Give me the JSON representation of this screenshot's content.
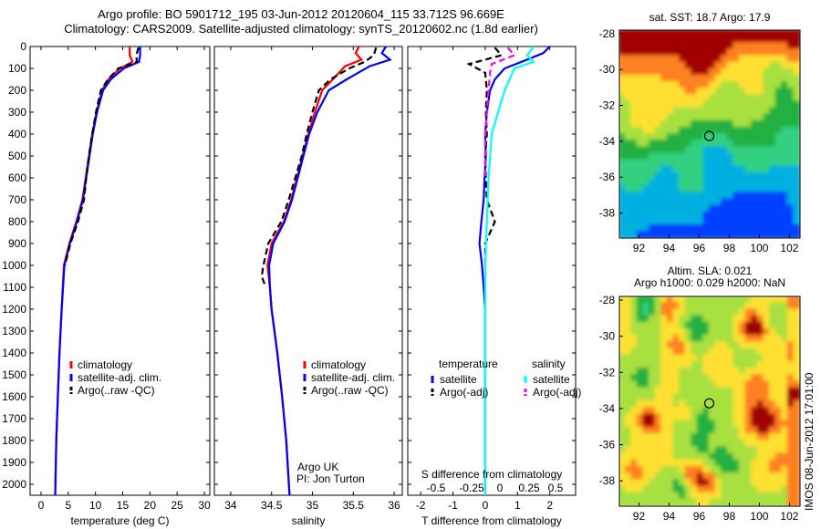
{
  "title": {
    "line1": "Argo profile: BO 5901712_195 03-Jun-2012 20120604_115 33.712S 96.669E",
    "line2": "Climatology: CARS2009. Satellite-adjusted climatology: synTS_20120602.nc (1.8d earlier)"
  },
  "colors": {
    "climatology": "#ff0000",
    "satellite": "#0000ff",
    "argo": "#000000",
    "s_satellite": "#00ffff",
    "s_argo": "#ff00ff"
  },
  "chart_data": [
    {
      "type": "line",
      "xlabel": "temperature (deg C)",
      "xticks": [
        0,
        5,
        10,
        15,
        20,
        25,
        30
      ],
      "xlim": [
        -2,
        31
      ],
      "ylim": [
        0,
        2050
      ],
      "yticks": [
        0,
        100,
        200,
        300,
        400,
        500,
        600,
        700,
        800,
        900,
        1000,
        1100,
        1200,
        1300,
        1400,
        1500,
        1600,
        1700,
        1800,
        1900,
        2000
      ],
      "legend": [
        "climatology",
        "satellite-adj. clim.",
        "Argo(..raw -QC)"
      ],
      "series": [
        {
          "name": "climatology",
          "color": "#ff0000",
          "depth": [
            0,
            40,
            70,
            100,
            150,
            200,
            300,
            400,
            500,
            600,
            700,
            800,
            900,
            1000,
            1200,
            1400,
            1600,
            1800,
            2050
          ],
          "values": [
            16.3,
            16.3,
            16.8,
            14.5,
            12.4,
            11.2,
            10.2,
            9.4,
            8.8,
            8.2,
            7.6,
            6.5,
            5.2,
            4.2,
            3.8,
            3.4,
            3.1,
            2.8,
            2.6
          ]
        },
        {
          "name": "satellite-adj. clim.",
          "color": "#0000ff",
          "depth": [
            0,
            40,
            70,
            100,
            150,
            200,
            300,
            400,
            500,
            600,
            700,
            800,
            900,
            1000,
            1200,
            1400,
            1600,
            1800,
            2050
          ],
          "values": [
            18.2,
            18.2,
            18.0,
            15.2,
            12.8,
            11.4,
            10.3,
            9.5,
            8.9,
            8.3,
            7.7,
            6.6,
            5.3,
            4.3,
            3.8,
            3.4,
            3.1,
            2.8,
            2.6
          ]
        },
        {
          "name": "Argo(..raw -QC)",
          "color": "#000000",
          "dashed": true,
          "depth": [
            5,
            40,
            70,
            100,
            150,
            200,
            300,
            400,
            500,
            600,
            700,
            800,
            900,
            1000
          ],
          "values": [
            17.9,
            17.5,
            17.6,
            14.2,
            12.3,
            11.0,
            10.1,
            9.4,
            8.8,
            8.3,
            7.9,
            6.8,
            5.4,
            4.4
          ]
        }
      ]
    },
    {
      "type": "line",
      "xlabel": "salinity",
      "xticks": [
        34,
        34.5,
        35,
        35.5,
        36
      ],
      "xticklabels": [
        "34",
        "34.5",
        "35",
        "35.5",
        "36"
      ],
      "xlim": [
        33.8,
        36.1
      ],
      "ylim": [
        0,
        2050
      ],
      "legend": [
        "climatology",
        "satellite-adj. clim.",
        "Argo(..raw -QC)"
      ],
      "series": [
        {
          "name": "climatology",
          "color": "#ff0000",
          "depth": [
            0,
            30,
            60,
            90,
            150,
            200,
            300,
            400,
            500,
            600,
            700,
            800,
            900,
            1000,
            1100,
            1200,
            1400,
            1600,
            1800,
            2050
          ],
          "values": [
            35.57,
            35.53,
            35.6,
            35.4,
            35.25,
            35.12,
            35.03,
            34.95,
            34.88,
            34.81,
            34.74,
            34.65,
            34.5,
            34.45,
            34.48,
            34.5,
            34.57,
            34.63,
            34.68,
            34.72
          ]
        },
        {
          "name": "satellite-adj. clim.",
          "color": "#0000ff",
          "depth": [
            0,
            30,
            60,
            90,
            150,
            200,
            300,
            400,
            500,
            600,
            700,
            800,
            900,
            1000,
            1100,
            1200,
            1400,
            1600,
            1800,
            2050
          ],
          "values": [
            35.9,
            35.85,
            35.95,
            35.7,
            35.42,
            35.2,
            35.06,
            34.96,
            34.89,
            34.82,
            34.75,
            34.66,
            34.52,
            34.47,
            34.48,
            34.5,
            34.57,
            34.63,
            34.68,
            34.72
          ]
        },
        {
          "name": "Argo(..raw -QC)",
          "color": "#000000",
          "dashed": true,
          "depth": [
            5,
            40,
            70,
            100,
            150,
            200,
            300,
            400,
            500,
            600,
            700,
            800,
            900,
            1000,
            1050,
            1100
          ],
          "values": [
            35.78,
            35.75,
            35.64,
            35.45,
            35.22,
            35.08,
            35.0,
            34.93,
            34.87,
            34.79,
            34.71,
            34.62,
            34.46,
            34.4,
            34.38,
            34.43
          ]
        }
      ],
      "note": [
        "Argo UK",
        "PI: Jon Turton"
      ]
    },
    {
      "type": "line",
      "xlabel": "T difference from climatology",
      "xticks": [
        -2,
        -1,
        0,
        1,
        2
      ],
      "xlim": [
        -2.4,
        2.8
      ],
      "top_label": "S difference from climatology",
      "top_ticks": [
        "-0.5",
        "-0.25",
        "0",
        "0.25",
        "0.5"
      ],
      "ylim": [
        0,
        2050
      ],
      "legend_headers": [
        "temperature",
        "salinity"
      ],
      "legend": [
        "satellite",
        "Argo(-adj)",
        "satellite",
        "Argo(-adj)"
      ],
      "series": [
        {
          "name": "satellite",
          "color": "#0000ff",
          "depth": [
            0,
            30,
            60,
            100,
            150,
            200,
            300,
            400,
            500,
            600,
            700,
            800,
            900,
            1000,
            1100,
            1200,
            1300,
            2050
          ],
          "values": [
            2.0,
            1.8,
            1.3,
            0.6,
            0.3,
            0.15,
            0.05,
            0.0,
            0.02,
            -0.02,
            -0.05,
            -0.12,
            -0.18,
            -0.1,
            -0.05,
            0.0,
            0.0,
            0.0
          ]
        },
        {
          "name": "Argo(-adj)",
          "color": "#000000",
          "dashed": true,
          "depth": [
            5,
            40,
            80,
            120,
            200,
            300,
            400,
            500,
            600,
            700,
            800,
            900,
            1000
          ],
          "values": [
            0.3,
            0.5,
            -0.5,
            0.0,
            0.05,
            0.02,
            0.05,
            0.0,
            0.02,
            0.05,
            0.3,
            0.0,
            0.0
          ]
        },
        {
          "name": "satellite",
          "color": "#00ffff",
          "depth": [
            0,
            40,
            70,
            100,
            200,
            300,
            400,
            600,
            800,
            1000,
            2050
          ],
          "values": [
            1.5,
            1.3,
            1.5,
            0.9,
            0.6,
            0.4,
            0.2,
            0.1,
            0.05,
            0.0,
            0.0
          ]
        },
        {
          "name": "Argo(-adj)",
          "color": "#ff00ff",
          "dashed": true,
          "depth": [
            5,
            40,
            80,
            120,
            200,
            300,
            400,
            500,
            600
          ],
          "values": [
            0.7,
            0.9,
            0.2,
            0.15,
            0.1,
            0.05,
            0.0,
            0.0,
            0.0
          ]
        }
      ]
    },
    {
      "type": "heatmap",
      "title": "sat. SST: 18.7 Argo: 17.9",
      "xticks": [
        92,
        94,
        96,
        98,
        100,
        102
      ],
      "yticks": [
        -28,
        -30,
        -32,
        -34,
        -36,
        -38
      ],
      "xlim": [
        90.7,
        102.7
      ],
      "ylim": [
        -39.4,
        -27.8
      ],
      "marker": [
        96.67,
        -33.71
      ]
    },
    {
      "type": "heatmap",
      "title_lines": [
        "Altim. SLA: 0.021",
        "Argo h1000: 0.029 h2000: NaN"
      ],
      "xticks": [
        92,
        94,
        96,
        98,
        100,
        102
      ],
      "yticks": [
        -28,
        -30,
        -32,
        -34,
        -36,
        -38
      ],
      "xlim": [
        90.7,
        102.7
      ],
      "ylim": [
        -39.4,
        -27.8
      ],
      "marker": [
        96.67,
        -33.71
      ]
    }
  ],
  "stamp": "IMOS 08-Jun-2012 17:01:00"
}
